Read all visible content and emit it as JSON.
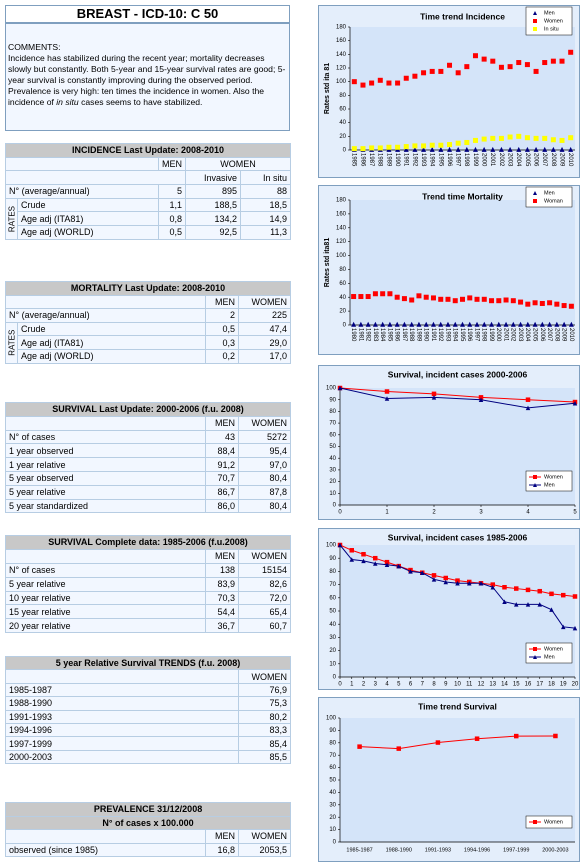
{
  "header": {
    "title": "BREAST - ICD-10: C 50"
  },
  "comments": {
    "label": "COMMENTS:",
    "text": [
      "Incidence has stabilized during the recent year; mortality decreases slowly but constantly. Both 5-year and 15-year survival rates are good; 5-year survival is constantly improving during the observed period. Prevalence is very high: ten times the incidence in women. Also the incidence of ",
      "in situ",
      " cases seems to have stabilized."
    ]
  },
  "tables": [
    {
      "title": "INCIDENCE Last Update: 2008-2010",
      "header": [
        "MEN",
        "WOMEN"
      ],
      "subheader": [
        "Invasive",
        "In situ"
      ],
      "side_label": "RATES",
      "rows": [
        {
          "label": "N° (average/annual)",
          "values": [
            "5",
            "895",
            "88"
          ]
        },
        {
          "label": "Crude",
          "values": [
            "1,1",
            "188,5",
            "18,5"
          ]
        },
        {
          "label": "Age adj (ITA81)",
          "values": [
            "0,8",
            "134,2",
            "14,9"
          ]
        },
        {
          "label": "Age adj (WORLD)",
          "values": [
            "0,5",
            "92,5",
            "11,3"
          ]
        }
      ]
    },
    {
      "title": "MORTALITY Last Update: 2008-2010",
      "header": [
        "MEN",
        "WOMEN"
      ],
      "side_label": "RATES",
      "rows": [
        {
          "label": "N° (average/annual)",
          "values": [
            "2",
            "225"
          ]
        },
        {
          "label": "Crude",
          "values": [
            "0,5",
            "47,4"
          ]
        },
        {
          "label": "Age adj (ITA81)",
          "values": [
            "0,3",
            "29,0"
          ]
        },
        {
          "label": "Age adj (WORLD)",
          "values": [
            "0,2",
            "17,0"
          ]
        }
      ]
    },
    {
      "title": "SURVIVAL Last Update: 2000-2006 (f.u. 2008)",
      "header": [
        "MEN",
        "WOMEN"
      ],
      "rows": [
        {
          "label": "N° of cases",
          "values": [
            "43",
            "5272"
          ]
        },
        {
          "label": "1 year observed",
          "values": [
            "88,4",
            "95,4"
          ]
        },
        {
          "label": "1 year relative",
          "values": [
            "91,2",
            "97,0"
          ]
        },
        {
          "label": "5 year observed",
          "values": [
            "70,7",
            "80,4"
          ]
        },
        {
          "label": "5 year relative",
          "values": [
            "86,7",
            "87,8"
          ]
        },
        {
          "label": "5 year standardized",
          "values": [
            "86,0",
            "80,4"
          ]
        }
      ]
    },
    {
      "title": "SURVIVAL Complete data: 1985-2006 (f.u.2008)",
      "header": [
        "MEN",
        "WOMEN"
      ],
      "rows": [
        {
          "label": "N° of cases",
          "values": [
            "138",
            "15154"
          ]
        },
        {
          "label": " 5  year relative",
          "values": [
            "83,9",
            "82,6"
          ]
        },
        {
          "label": "10 year relative",
          "values": [
            "70,3",
            "72,0"
          ]
        },
        {
          "label": "15 year relative",
          "values": [
            "54,4",
            "65,4"
          ]
        },
        {
          "label": "20 year relative",
          "values": [
            "36,7",
            "60,7"
          ]
        }
      ]
    },
    {
      "title": "5 year Relative Survival TRENDS (f.u. 2008)",
      "header": [
        "WOMEN"
      ],
      "rows": [
        {
          "label": "1985-1987",
          "values": [
            "76,9"
          ]
        },
        {
          "label": "1988-1990",
          "values": [
            "75,3"
          ]
        },
        {
          "label": "1991-1993",
          "values": [
            "80,2"
          ]
        },
        {
          "label": "1994-1996",
          "values": [
            "83,3"
          ]
        },
        {
          "label": "1997-1999",
          "values": [
            "85,4"
          ]
        },
        {
          "label": "2000-2003",
          "values": [
            "85,5"
          ]
        }
      ]
    },
    {
      "title": "PREVALENCE 31/12/2008",
      "subtitle": "N° of cases x 100.000",
      "header": [
        "MEN",
        "WOMEN"
      ],
      "rows": [
        {
          "label": "observed (since 1985)",
          "values": [
            "16,8",
            "2053,5"
          ]
        }
      ]
    }
  ],
  "chart_data": [
    {
      "type": "scatter",
      "title": "Time trend Incidence",
      "ylabel": "Rates std ita 81",
      "legend": "upper right",
      "grid": false,
      "categories": [
        "1985",
        "1986",
        "1987",
        "1988",
        "1989",
        "1990",
        "1991",
        "1992",
        "1993",
        "1994",
        "1995",
        "1996",
        "1997",
        "1998",
        "1999",
        "2000",
        "2001",
        "2002",
        "2003",
        "2004",
        "2005",
        "2006",
        "2007",
        "2008",
        "2009",
        "2010"
      ],
      "ylim": [
        0,
        180
      ],
      "yticks": [
        0,
        20,
        40,
        60,
        80,
        100,
        120,
        140,
        160,
        180
      ],
      "series": [
        {
          "name": "Men",
          "color": "#000080",
          "marker": "triangle",
          "values": [
            1,
            1,
            1,
            1,
            1,
            1,
            1,
            1,
            1,
            1,
            1,
            1,
            1,
            1,
            1,
            1,
            1,
            1,
            1,
            1,
            1,
            1,
            1,
            1,
            1,
            1
          ]
        },
        {
          "name": "Women",
          "color": "#ff0000",
          "marker": "square",
          "values": [
            100,
            95,
            98,
            102,
            98,
            98,
            105,
            108,
            113,
            115,
            115,
            124,
            113,
            122,
            138,
            133,
            130,
            121,
            122,
            128,
            125,
            115,
            128,
            130,
            130,
            143
          ]
        },
        {
          "name": "In situ",
          "color": "#ffff00",
          "marker": "square",
          "values": [
            2,
            2,
            3,
            3,
            4,
            4,
            5,
            6,
            6,
            7,
            7,
            8,
            10,
            11,
            14,
            16,
            17,
            17,
            19,
            20,
            18,
            17,
            17,
            15,
            14,
            18
          ]
        }
      ]
    },
    {
      "type": "scatter",
      "title": "Trend time Mortality",
      "ylabel": "Rates std ita81",
      "legend": "upper right",
      "grid": false,
      "categories": [
        "1980",
        "1981",
        "1982",
        "1983",
        "1984",
        "1985",
        "1986",
        "1987",
        "1988",
        "1989",
        "1990",
        "1991",
        "1992",
        "1993",
        "1994",
        "1995",
        "1996",
        "1997",
        "1998",
        "1999",
        "2000",
        "2001",
        "2002",
        "2003",
        "2004",
        "2005",
        "2006",
        "2007",
        "2008",
        "2009",
        "2010"
      ],
      "ylim": [
        0,
        180
      ],
      "yticks": [
        0,
        20,
        40,
        60,
        80,
        100,
        120,
        140,
        160,
        180
      ],
      "series": [
        {
          "name": "Men",
          "color": "#000080",
          "marker": "triangle",
          "values": [
            1,
            1,
            1,
            1,
            1,
            1,
            1,
            1,
            1,
            1,
            1,
            1,
            1,
            1,
            1,
            1,
            1,
            1,
            1,
            1,
            1,
            1,
            1,
            1,
            1,
            1,
            1,
            1,
            1,
            1,
            1
          ]
        },
        {
          "name": "Woman",
          "color": "#ff0000",
          "marker": "square",
          "values": [
            41,
            41,
            41,
            45,
            45,
            45,
            40,
            38,
            36,
            42,
            40,
            39,
            37,
            37,
            35,
            37,
            39,
            37,
            37,
            35,
            35,
            36,
            35,
            33,
            30,
            32,
            31,
            32,
            30,
            28,
            27
          ]
        }
      ]
    },
    {
      "type": "line",
      "title": "Survival, incident cases 2000-2006",
      "legend": "lower right",
      "grid": false,
      "x": [
        0,
        1,
        2,
        3,
        4,
        5
      ],
      "xlim": [
        0,
        5
      ],
      "xticks": [
        0,
        1,
        2,
        3,
        4,
        5
      ],
      "ylim": [
        0,
        100
      ],
      "yticks": [
        0,
        10,
        20,
        30,
        40,
        50,
        60,
        70,
        80,
        90,
        100
      ],
      "series": [
        {
          "name": "Women",
          "color": "#ff0000",
          "marker": "square",
          "values": [
            100,
            97,
            95,
            92,
            90,
            88
          ]
        },
        {
          "name": "Men",
          "color": "#000080",
          "marker": "triangle",
          "values": [
            100,
            91,
            92,
            90,
            83,
            87
          ]
        }
      ]
    },
    {
      "type": "line",
      "title": "Survival, incident cases 1985-2006",
      "legend": "lower right",
      "grid": false,
      "x": [
        0,
        1,
        2,
        3,
        4,
        5,
        6,
        7,
        8,
        9,
        10,
        11,
        12,
        13,
        14,
        15,
        16,
        17,
        18,
        19,
        20
      ],
      "xlim": [
        0,
        20
      ],
      "xticks": [
        0,
        1,
        2,
        3,
        4,
        5,
        6,
        7,
        8,
        9,
        10,
        11,
        12,
        13,
        14,
        15,
        16,
        17,
        18,
        19,
        20
      ],
      "ylim": [
        0,
        100
      ],
      "yticks": [
        0,
        10,
        20,
        30,
        40,
        50,
        60,
        70,
        80,
        90,
        100
      ],
      "series": [
        {
          "name": "Women",
          "color": "#ff0000",
          "marker": "square",
          "values": [
            100,
            96,
            93,
            90,
            87,
            84,
            81,
            79,
            77,
            75,
            73,
            72,
            71,
            70,
            68,
            67,
            66,
            65,
            63,
            62,
            61
          ]
        },
        {
          "name": "Men",
          "color": "#000080",
          "marker": "triangle",
          "values": [
            100,
            89,
            88,
            86,
            85,
            84,
            80,
            79,
            74,
            72,
            71,
            71,
            71,
            68,
            57,
            55,
            55,
            55,
            51,
            38,
            37
          ]
        }
      ]
    },
    {
      "type": "line",
      "title": "Time trend Survival",
      "legend": "lower right",
      "grid": false,
      "categories": [
        "1985-1987",
        "1988-1990",
        "1991-1993",
        "1994-1996",
        "1997-1999",
        "2000-2003"
      ],
      "ylim": [
        0,
        100
      ],
      "yticks": [
        0,
        10,
        20,
        30,
        40,
        50,
        60,
        70,
        80,
        90,
        100
      ],
      "series": [
        {
          "name": "Women",
          "color": "#ff0000",
          "marker": "square",
          "values": [
            76.9,
            75.3,
            80.2,
            83.3,
            85.4,
            85.5
          ]
        }
      ]
    }
  ]
}
